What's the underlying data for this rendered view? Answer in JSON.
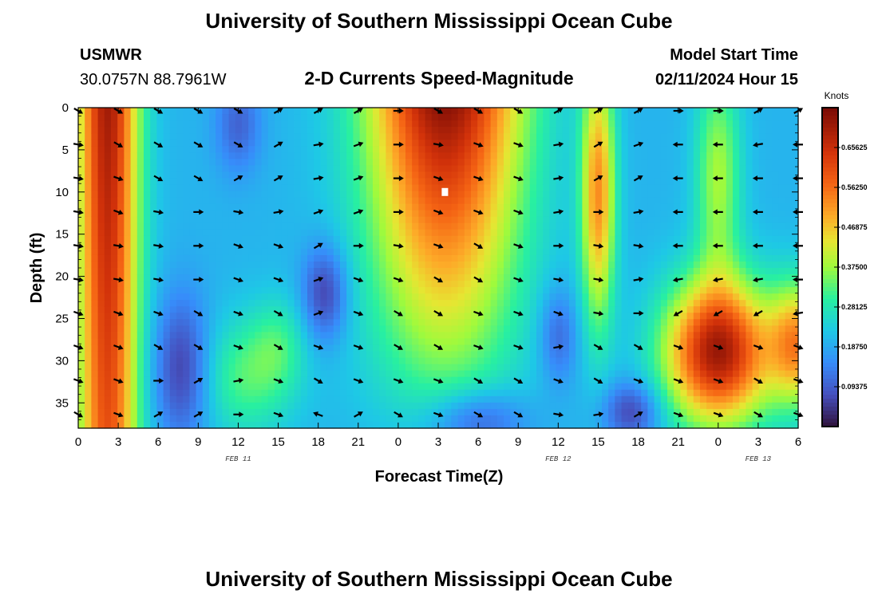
{
  "header": {
    "title": "University of Southern Mississippi Ocean Cube",
    "station": "USMWR",
    "coords": "30.0757N  88.7961W",
    "subtitle": "2-D Currents Speed-Magnitude",
    "model_start_label": "Model Start Time",
    "model_start_value": "02/11/2024 Hour 15"
  },
  "footer": {
    "title": "University of Southern Mississippi Ocean Cube"
  },
  "colors": {
    "arrow": "#000000",
    "marker": "#ffffff"
  },
  "chart_data": {
    "type": "heatmap",
    "title": "2-D Currents Speed-Magnitude",
    "xlabel": "Forecast Time(Z)",
    "ylabel": "Depth (ft)",
    "x_ticks": [
      "0",
      "3",
      "6",
      "9",
      "12",
      "15",
      "18",
      "21",
      "0",
      "3",
      "6",
      "9",
      "12",
      "15",
      "18",
      "21",
      "0",
      "3",
      "6"
    ],
    "x_range_hours": [
      0,
      54
    ],
    "y_ticks": [
      "0",
      "5",
      "10",
      "15",
      "20",
      "25",
      "30",
      "35"
    ],
    "y_tick_values": [
      0,
      5,
      10,
      15,
      20,
      25,
      30,
      35
    ],
    "y_range_ft": [
      0,
      38
    ],
    "date_labels": [
      {
        "label": "FEB 11",
        "hour": 12
      },
      {
        "label": "FEB 12",
        "hour": 36
      },
      {
        "label": "FEB 13",
        "hour": 51
      }
    ],
    "colorbar": {
      "title": "Knots",
      "min": 0.0,
      "max": 0.75,
      "tick_labels": [
        "0.09375",
        "0.18750",
        "0.28125",
        "0.37500",
        "0.46875",
        "0.56250",
        "0.65625"
      ],
      "tick_values": [
        0.09375,
        0.1875,
        0.28125,
        0.375,
        0.46875,
        0.5625,
        0.65625
      ]
    },
    "arrow_hours": [
      0,
      3,
      6,
      9,
      12,
      15,
      18,
      21,
      24,
      27,
      30,
      33,
      36,
      39,
      42,
      45,
      48,
      51,
      54
    ],
    "arrow_depths": [
      0,
      4,
      8,
      12,
      16,
      20,
      24,
      28,
      32,
      36
    ],
    "arrow_directions": [
      [
        30,
        30,
        30,
        30,
        30,
        330,
        330,
        330,
        0,
        30,
        30,
        30,
        330,
        330,
        330,
        0,
        0,
        330,
        330
      ],
      [
        10,
        30,
        30,
        30,
        30,
        330,
        350,
        340,
        0,
        10,
        20,
        20,
        350,
        330,
        340,
        180,
        180,
        170,
        180
      ],
      [
        10,
        20,
        30,
        30,
        330,
        330,
        350,
        340,
        0,
        20,
        20,
        20,
        350,
        330,
        330,
        180,
        180,
        180,
        180
      ],
      [
        10,
        20,
        10,
        0,
        10,
        350,
        340,
        340,
        0,
        20,
        20,
        20,
        350,
        0,
        350,
        180,
        180,
        180,
        180
      ],
      [
        10,
        10,
        10,
        0,
        20,
        20,
        330,
        0,
        10,
        20,
        30,
        20,
        0,
        10,
        10,
        180,
        180,
        180,
        180
      ],
      [
        10,
        10,
        10,
        0,
        20,
        20,
        340,
        20,
        20,
        30,
        30,
        20,
        10,
        10,
        350,
        170,
        170,
        170,
        180
      ],
      [
        20,
        20,
        20,
        30,
        20,
        30,
        340,
        20,
        30,
        30,
        20,
        20,
        20,
        10,
        0,
        150,
        150,
        150,
        170
      ],
      [
        20,
        20,
        30,
        30,
        20,
        30,
        20,
        20,
        30,
        30,
        20,
        20,
        350,
        30,
        30,
        20,
        20,
        20,
        20
      ],
      [
        20,
        20,
        0,
        330,
        350,
        20,
        30,
        20,
        20,
        20,
        30,
        30,
        20,
        30,
        20,
        20,
        20,
        30,
        20
      ],
      [
        30,
        20,
        330,
        330,
        0,
        20,
        200,
        330,
        30,
        20,
        30,
        30,
        10,
        350,
        330,
        20,
        20,
        30,
        20
      ]
    ],
    "marker": {
      "hour": 27.5,
      "depth_ft": 10
    }
  }
}
